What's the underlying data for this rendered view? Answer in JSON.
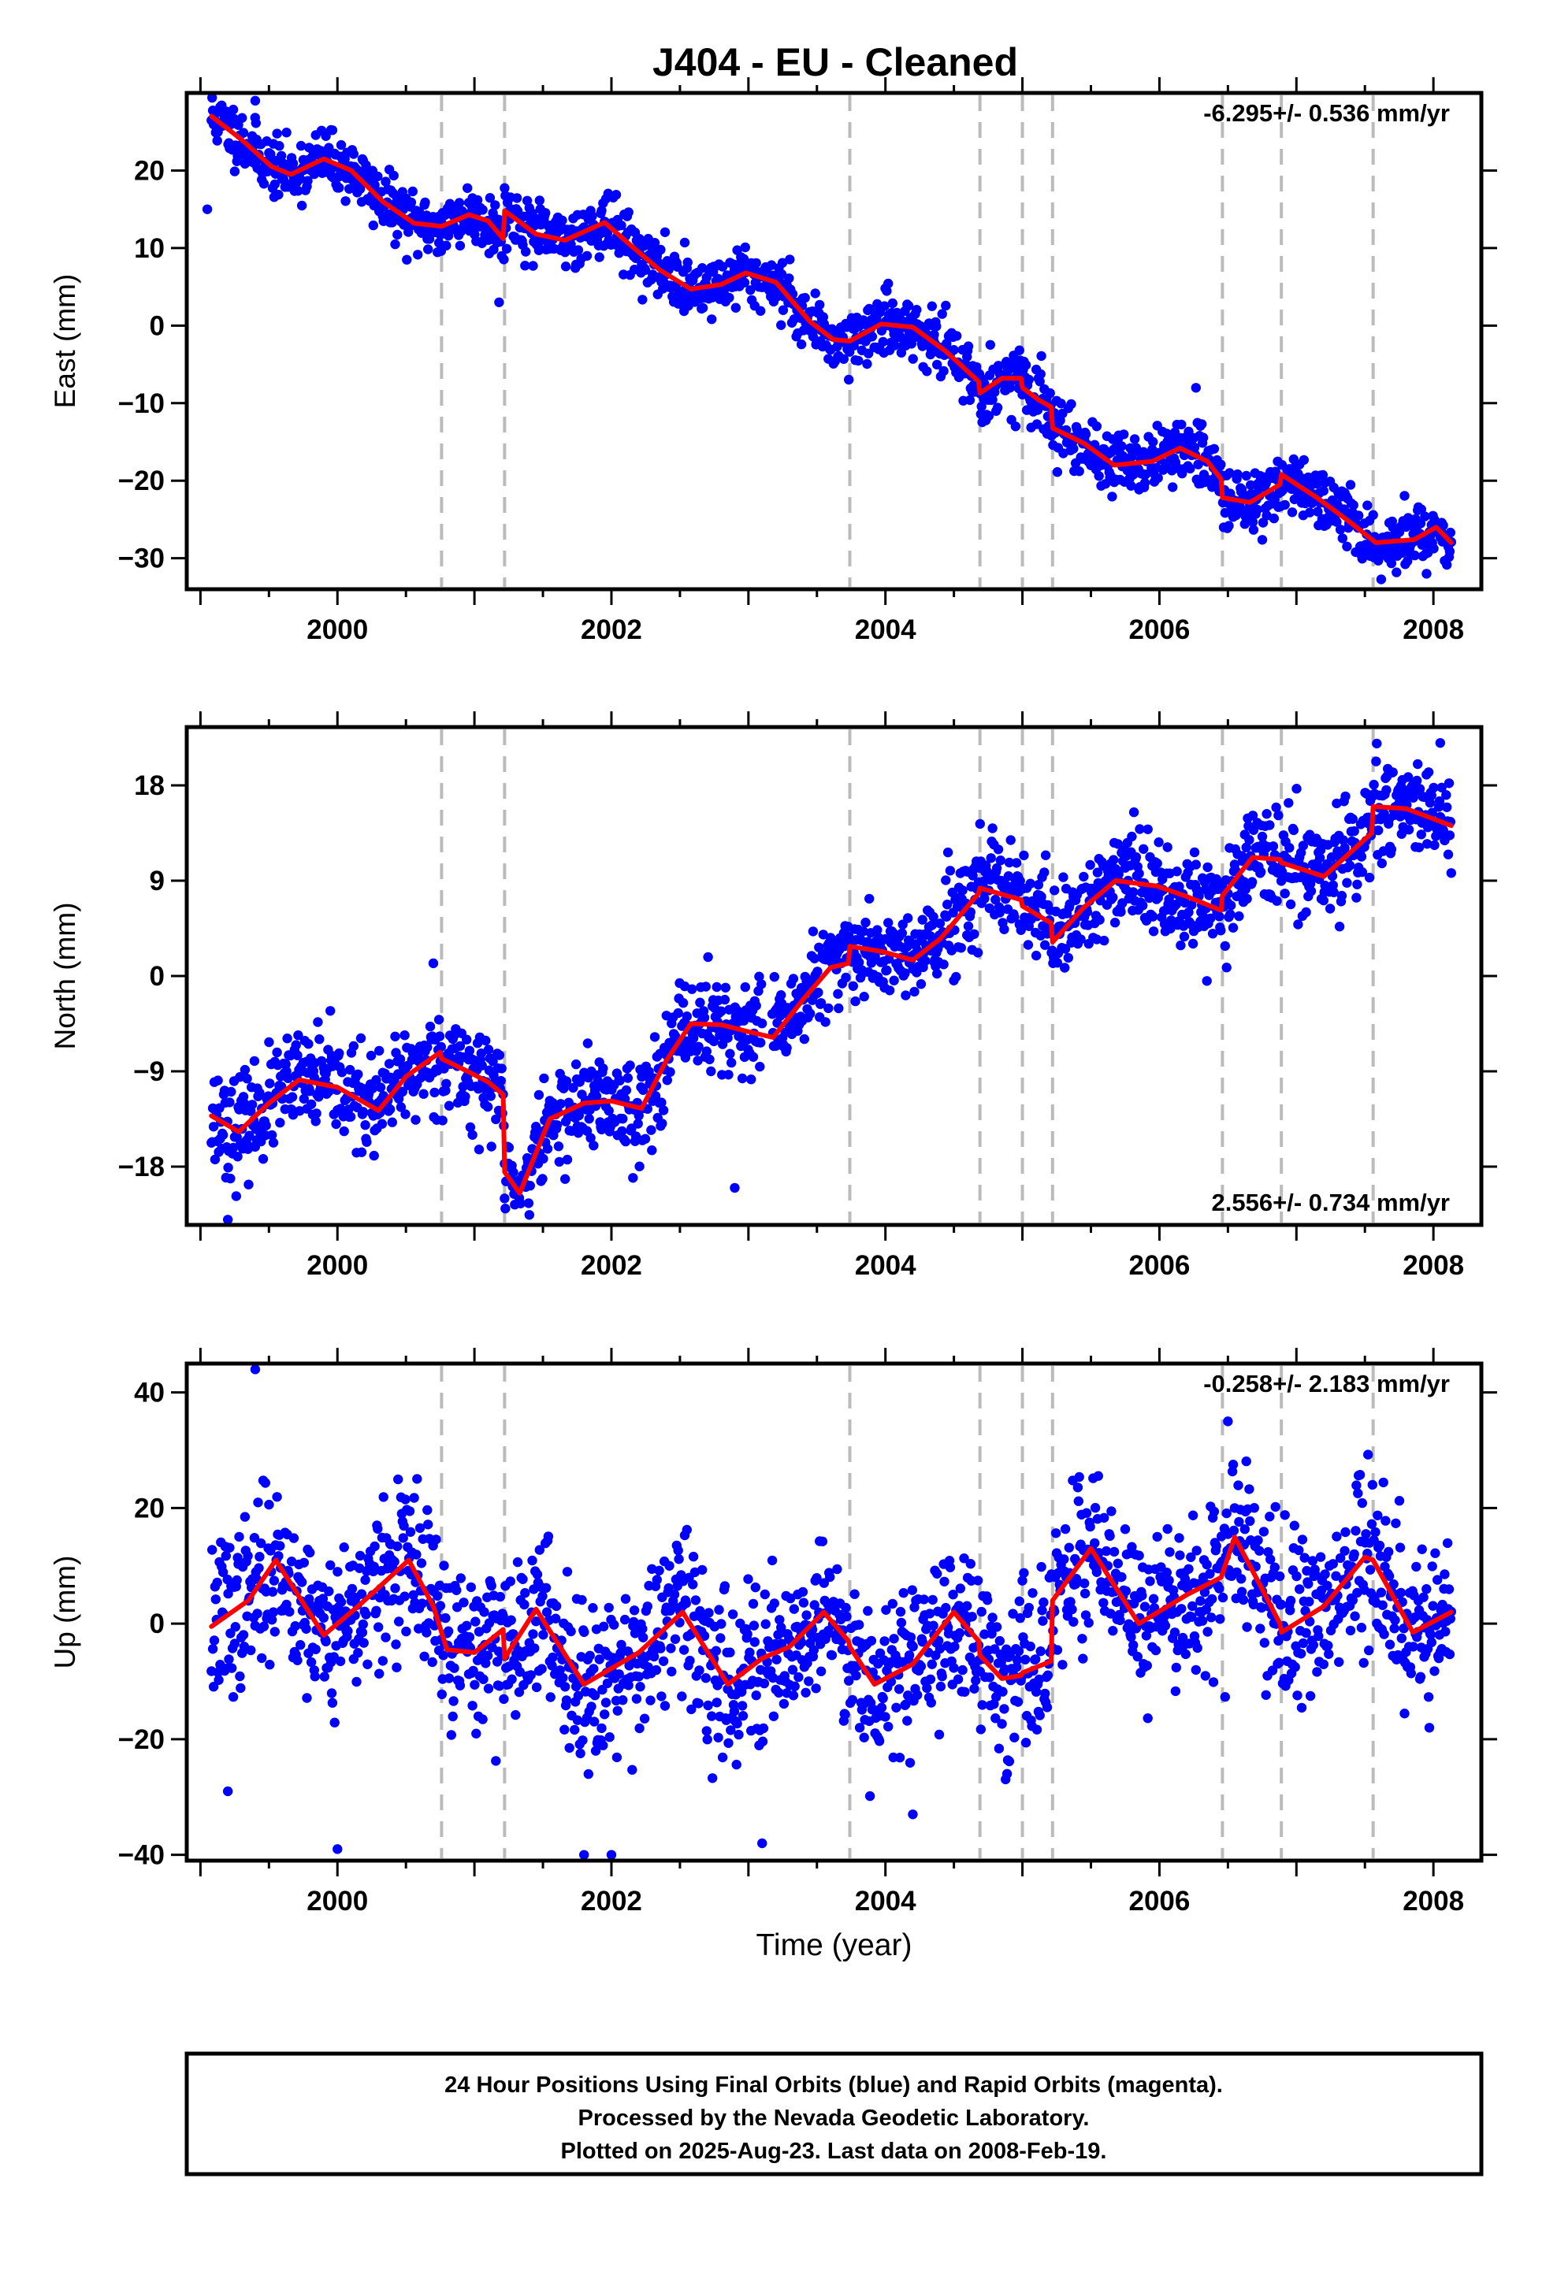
{
  "page_title": "J404  - EU - Cleaned",
  "footer": {
    "line1": "24 Hour Positions Using Final Orbits (blue) and Rapid Orbits (magenta).",
    "line2": "Processed by the Nevada Geodetic Laboratory.",
    "line3": "Plotted on 2025-Aug-23. Last data on 2008-Feb-19."
  },
  "colors": {
    "data_points": "#0000ff",
    "model_line": "#ff0000",
    "event_lines": "#bbbbbb",
    "frame": "#000000"
  },
  "chart_data": [
    {
      "type": "scatter",
      "panel": "east",
      "title": "J404  - EU - Cleaned",
      "xlabel": "",
      "ylabel": "East (mm)",
      "rate_label": "-6.295+/- 0.536 mm/yr",
      "rate_label_position": "top-right",
      "xlim": [
        1998.9,
        2008.35
      ],
      "ylim": [
        -34,
        30
      ],
      "x_ticks": [
        2000,
        2002,
        2004,
        2006,
        2008
      ],
      "x_tick_labels": [
        "2000",
        "2002",
        "2004",
        "2006",
        "2008"
      ],
      "y_ticks": [
        20,
        10,
        0,
        -10,
        -20,
        -30
      ],
      "y_tick_labels": [
        "20",
        "10",
        "0",
        "−10",
        "−20",
        "−30"
      ],
      "event_lines_x": [
        2000.76,
        2001.22,
        2003.74,
        2004.69,
        2005.0,
        2005.22,
        2006.46,
        2006.89,
        2007.56
      ],
      "model": {
        "name": "",
        "x": [
          1999.08,
          1999.3,
          1999.52,
          1999.66,
          1999.9,
          2000.1,
          2000.33,
          2000.56,
          2000.76,
          2000.96,
          2001.1,
          2001.21,
          2001.22,
          2001.45,
          2001.66,
          2001.95,
          2002.15,
          2002.35,
          2002.58,
          2002.8,
          2002.98,
          2003.2,
          2003.45,
          2003.62,
          2003.74,
          2003.97,
          2004.2,
          2004.44,
          2004.68,
          2004.69,
          2004.85,
          2004.99,
          2005.0,
          2005.12,
          2005.21,
          2005.22,
          2005.45,
          2005.67,
          2005.95,
          2006.15,
          2006.35,
          2006.45,
          2006.46,
          2006.66,
          2006.88,
          2006.89,
          2007.15,
          2007.38,
          2007.58,
          2007.86,
          2008.02,
          2008.13
        ],
        "y": [
          27,
          24,
          20.5,
          19.5,
          21.5,
          20,
          16,
          13.2,
          12.8,
          14.3,
          13.5,
          11.2,
          14.8,
          11.8,
          11.0,
          13.3,
          10.2,
          7.2,
          4.7,
          5.3,
          6.8,
          5.6,
          0.5,
          -1.8,
          -2,
          0.2,
          -0.2,
          -3.3,
          -7.2,
          -8.7,
          -6.8,
          -6.8,
          -8.0,
          -9.6,
          -10.5,
          -13.2,
          -15.2,
          -18.0,
          -17.5,
          -15.8,
          -17.5,
          -19.8,
          -22.2,
          -22.8,
          -20.5,
          -19.2,
          -22.2,
          -25.2,
          -28.0,
          -27.6,
          -26.0,
          -28.0
        ]
      },
      "scatter": {
        "name": "",
        "x_range": [
          1999.08,
          2008.13
        ],
        "noise_mm": 1.9,
        "extreme_points": [
          [
            1999.4,
            29
          ],
          [
            1999.05,
            15
          ],
          [
            2001.18,
            3
          ],
          [
            2004.95,
            -13
          ],
          [
            2007.95,
            -32
          ]
        ]
      }
    },
    {
      "type": "scatter",
      "panel": "north",
      "title": "",
      "xlabel": "",
      "ylabel": "North (mm)",
      "rate_label": "2.556+/- 0.734 mm/yr",
      "rate_label_position": "bottom-right",
      "xlim": [
        1998.9,
        2008.35
      ],
      "ylim": [
        -23.5,
        23.5
      ],
      "x_ticks": [
        2000,
        2002,
        2004,
        2006,
        2008
      ],
      "x_tick_labels": [
        "2000",
        "2002",
        "2004",
        "2006",
        "2008"
      ],
      "y_ticks": [
        18,
        9,
        0,
        -9,
        -18
      ],
      "y_tick_labels": [
        "18",
        "9",
        "0",
        "−9",
        "−18"
      ],
      "event_lines_x": [
        2000.76,
        2001.22,
        2003.74,
        2004.69,
        2005.0,
        2005.22,
        2006.46,
        2006.89,
        2007.56
      ],
      "model": {
        "name": "",
        "x": [
          1999.08,
          1999.28,
          1999.5,
          1999.72,
          2000.0,
          2000.3,
          2000.5,
          2000.75,
          2000.76,
          2000.95,
          2001.1,
          2001.21,
          2001.22,
          2001.33,
          2001.55,
          2001.8,
          2002.0,
          2002.22,
          2002.4,
          2002.58,
          2002.8,
          2002.98,
          2003.18,
          2003.4,
          2003.6,
          2003.73,
          2003.74,
          2003.98,
          2004.2,
          2004.4,
          2004.68,
          2004.69,
          2004.99,
          2005.0,
          2005.21,
          2005.22,
          2005.45,
          2005.68,
          2005.98,
          2006.2,
          2006.45,
          2006.46,
          2006.68,
          2006.88,
          2006.89,
          2007.2,
          2007.55,
          2007.56,
          2007.8,
          2008.13
        ],
        "y": [
          -13.2,
          -14.7,
          -12,
          -9.8,
          -10.5,
          -12.7,
          -9.5,
          -7.2,
          -7.8,
          -9,
          -10,
          -11.2,
          -18.5,
          -20.5,
          -13.5,
          -12,
          -11.8,
          -12.5,
          -8,
          -4.5,
          -4.6,
          -5.2,
          -5.8,
          -2.2,
          0.8,
          1.2,
          2.8,
          2.3,
          1.5,
          3.5,
          7.8,
          8.3,
          7.2,
          6.6,
          5.0,
          3.2,
          6.5,
          9.0,
          8.5,
          7.5,
          6.2,
          7.6,
          11.2,
          11.0,
          10.7,
          9.4,
          13.5,
          16.0,
          15.8,
          14.2
        ]
      },
      "scatter": {
        "name": "",
        "x_range": [
          1999.08,
          2008.13
        ],
        "noise_mm": 2.3,
        "data_gap_x": [
          2003.1,
          2003.17
        ],
        "extreme_points": [
          [
            2008.05,
            22
          ],
          [
            1999.2,
            -23
          ],
          [
            2001.22,
            -21
          ],
          [
            2000.7,
            1.2
          ],
          [
            2002.9,
            -20
          ]
        ]
      }
    },
    {
      "type": "scatter",
      "panel": "up",
      "title": "",
      "xlabel": "Time (year)",
      "ylabel": "Up (mm)",
      "rate_label": "-0.258+/- 2.183 mm/yr",
      "rate_label_position": "top-right",
      "xlim": [
        1998.9,
        2008.35
      ],
      "ylim": [
        -41,
        45
      ],
      "x_ticks": [
        2000,
        2002,
        2004,
        2006,
        2008
      ],
      "x_tick_labels": [
        "2000",
        "2002",
        "2004",
        "2006",
        "2008"
      ],
      "y_ticks": [
        40,
        20,
        0,
        -20,
        -40
      ],
      "y_tick_labels": [
        "40",
        "20",
        "0",
        "−20",
        "−40"
      ],
      "event_lines_x": [
        2000.76,
        2001.22,
        2003.74,
        2004.69,
        2005.0,
        2005.22,
        2006.46,
        2006.89,
        2007.56
      ],
      "model": {
        "name": "",
        "x": [
          1999.08,
          1999.35,
          1999.55,
          1999.9,
          2000.15,
          2000.52,
          2000.7,
          2000.8,
          2001.0,
          2001.21,
          2001.22,
          2001.45,
          2001.8,
          2002.2,
          2002.52,
          2002.85,
          2003.1,
          2003.3,
          2003.55,
          2003.73,
          2003.74,
          2003.92,
          2004.2,
          2004.5,
          2004.68,
          2004.69,
          2004.85,
          2004.99,
          2005.0,
          2005.21,
          2005.22,
          2005.5,
          2005.85,
          2006.2,
          2006.45,
          2006.55,
          2006.75,
          2006.88,
          2006.89,
          2007.2,
          2007.5,
          2007.56,
          2007.85,
          2008.13
        ],
        "y": [
          -0.5,
          4,
          11,
          -2,
          3,
          11,
          3,
          -4.5,
          -5,
          -1,
          -6,
          2.5,
          -10.5,
          -5,
          2,
          -10.5,
          -6,
          -4,
          2,
          -3,
          -4,
          -10.5,
          -7,
          2,
          -3,
          -5.5,
          -9.5,
          -9,
          -8.5,
          -6.5,
          4,
          13,
          0,
          5,
          8,
          15,
          6,
          0,
          -1.5,
          3,
          11.5,
          11,
          -1.5,
          2
        ]
      },
      "scatter": {
        "name": "",
        "x_range": [
          1999.08,
          2008.13
        ],
        "noise_mm": 7.0,
        "extreme_points": [
          [
            1999.4,
            44
          ],
          [
            1999.2,
            -29
          ],
          [
            2000.0,
            -39
          ],
          [
            2001.8,
            -40
          ],
          [
            2002.0,
            -40
          ],
          [
            2003.1,
            -38
          ],
          [
            2004.2,
            -33
          ],
          [
            2006.5,
            35
          ]
        ]
      }
    }
  ]
}
